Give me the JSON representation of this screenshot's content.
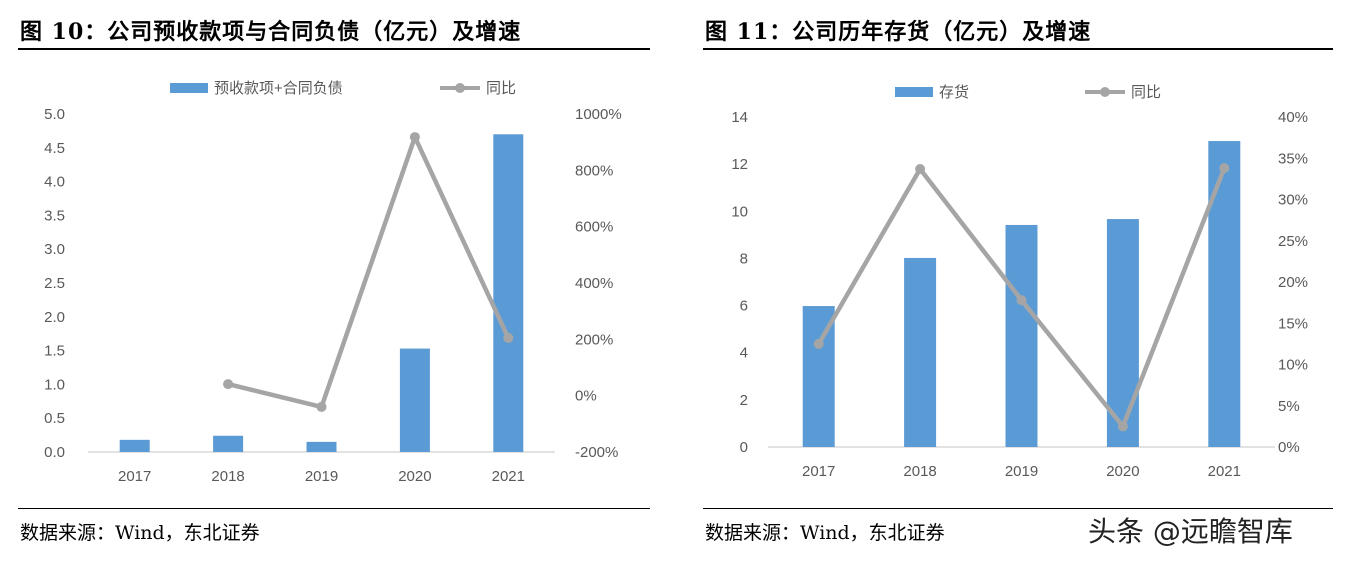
{
  "watermark": "头条 @远瞻智库",
  "chart_data": [
    {
      "type": "bar+line",
      "title": "图 10：公司预收款项与合同负债（亿元）及增速",
      "source": "数据来源：Wind，东北证券",
      "categories": [
        "2017",
        "2018",
        "2019",
        "2020",
        "2021"
      ],
      "series": [
        {
          "name": "预收款项+合同负债",
          "type": "bar",
          "axis": "left",
          "color": "#5B9BD5",
          "values": [
            0.18,
            0.24,
            0.15,
            1.53,
            4.7
          ]
        },
        {
          "name": "同比",
          "type": "line",
          "axis": "right",
          "color": "#A5A5A5",
          "values": [
            null,
            41,
            -40,
            918,
            205
          ]
        }
      ],
      "ylim": [
        0,
        5
      ],
      "yticks": [
        "0.0",
        "0.5",
        "1.0",
        "1.5",
        "2.0",
        "2.5",
        "3.0",
        "3.5",
        "4.0",
        "4.5",
        "5.0"
      ],
      "y2lim": [
        -200,
        1000
      ],
      "y2ticks": [
        "-200%",
        "0%",
        "200%",
        "400%",
        "600%",
        "800%",
        "1000%"
      ],
      "legend": "top",
      "grid": false
    },
    {
      "type": "bar+line",
      "title": "图 11：公司历年存货（亿元）及增速",
      "source": "数据来源：Wind，东北证券",
      "categories": [
        "2017",
        "2018",
        "2019",
        "2020",
        "2021"
      ],
      "series": [
        {
          "name": "存货",
          "type": "bar",
          "axis": "left",
          "color": "#5B9BD5",
          "values": [
            5.98,
            8.02,
            9.42,
            9.67,
            12.98
          ]
        },
        {
          "name": "同比",
          "type": "line",
          "axis": "right",
          "color": "#A5A5A5",
          "values": [
            12.5,
            33.7,
            17.8,
            2.5,
            33.8
          ]
        }
      ],
      "ylim": [
        0,
        14
      ],
      "yticks": [
        "0",
        "2",
        "4",
        "6",
        "8",
        "10",
        "12",
        "14"
      ],
      "y2lim": [
        0,
        40
      ],
      "y2ticks": [
        "0%",
        "5%",
        "10%",
        "15%",
        "20%",
        "25%",
        "30%",
        "35%",
        "40%"
      ],
      "legend": "top",
      "grid": false
    }
  ]
}
